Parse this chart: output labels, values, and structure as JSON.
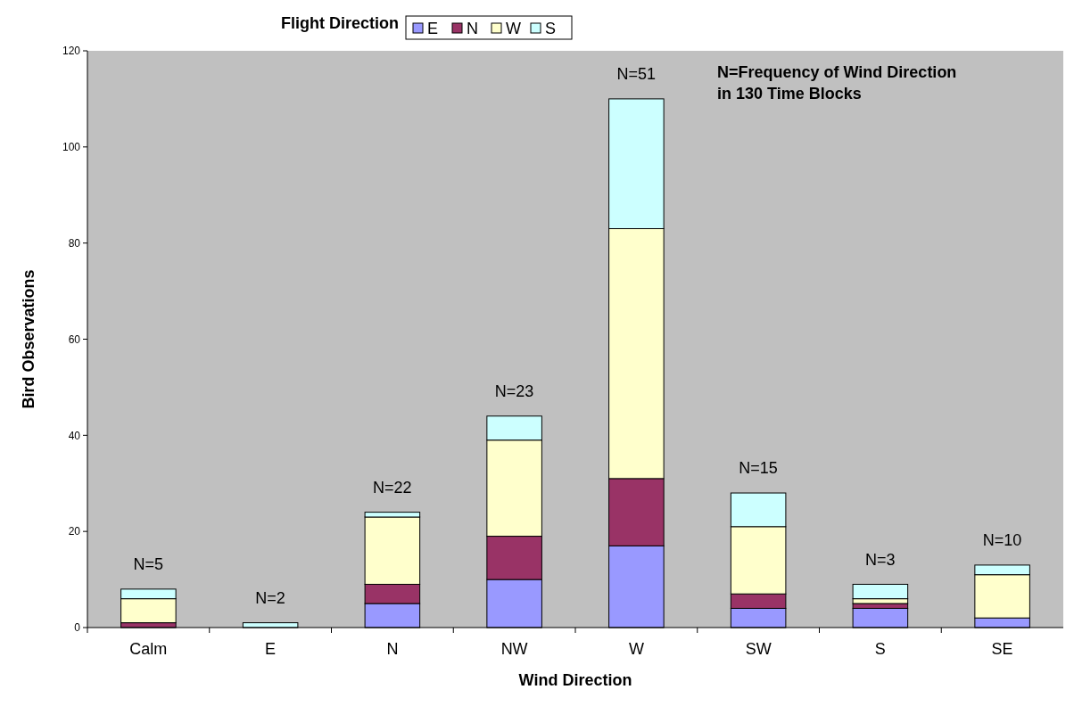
{
  "chart_data": {
    "type": "bar",
    "stacked": true,
    "xlabel": "Wind Direction",
    "ylabel": "Bird Observations",
    "legend_title": "Flight Direction",
    "legend": "top",
    "grid": false,
    "categories": [
      "Calm",
      "E",
      "N",
      "NW",
      "W",
      "SW",
      "S",
      "SE"
    ],
    "series": [
      {
        "name": "E",
        "color": "#9999ff",
        "values": [
          0,
          0,
          5,
          10,
          17,
          4,
          4,
          2
        ]
      },
      {
        "name": "N",
        "color": "#993366",
        "values": [
          1,
          0,
          4,
          9,
          14,
          3,
          1,
          0
        ]
      },
      {
        "name": "W",
        "color": "#ffffcc",
        "values": [
          5,
          0,
          14,
          20,
          52,
          14,
          1,
          9
        ]
      },
      {
        "name": "S",
        "color": "#ccffff",
        "values": [
          2,
          1,
          1,
          5,
          27,
          7,
          3,
          2
        ]
      }
    ],
    "ylim": [
      0,
      120
    ],
    "yticks": [
      0,
      20,
      40,
      60,
      80,
      100,
      120
    ],
    "annotations": [
      "N=5",
      "N=2",
      "N=22",
      "N=23",
      "N=51",
      "N=15",
      "N=3",
      "N=10",
      "N=Frequency of Wind Direction\nin 130 Time Blocks"
    ]
  }
}
